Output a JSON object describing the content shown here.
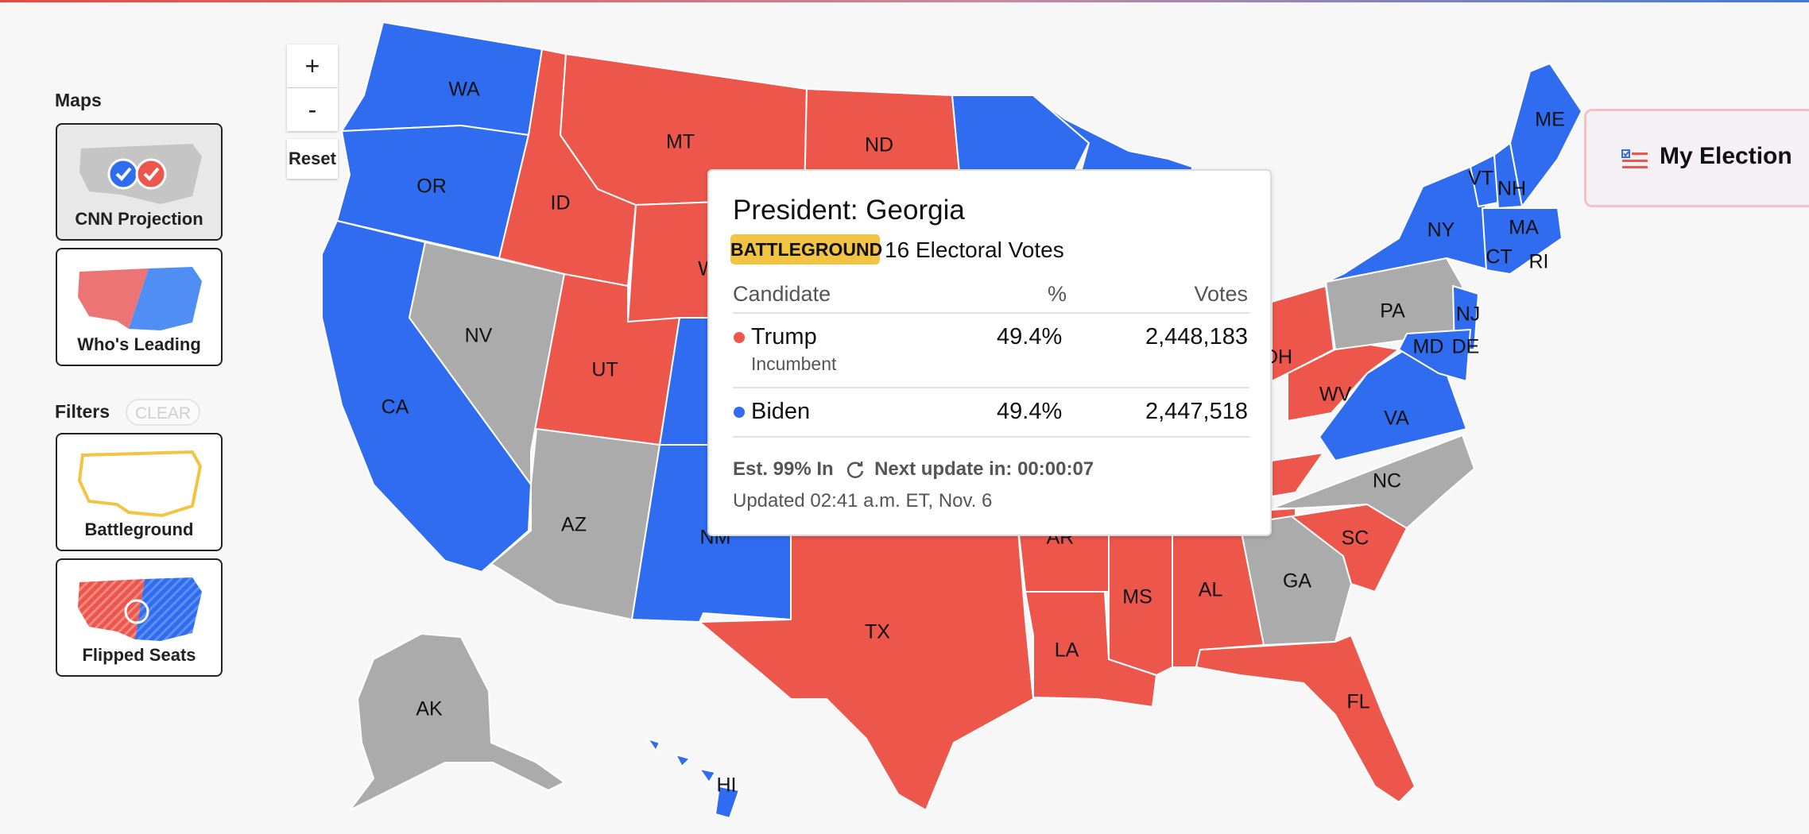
{
  "sidebar": {
    "maps_heading": "Maps",
    "map_options": [
      {
        "label": "CNN Projection",
        "icon": "us-map-check-icon",
        "active": true
      },
      {
        "label": "Who's Leading",
        "icon": "us-map-split-icon",
        "active": false
      }
    ],
    "filters_heading": "Filters",
    "clear_label": "CLEAR",
    "filter_options": [
      {
        "label": "Battleground",
        "icon": "us-outline-icon"
      },
      {
        "label": "Flipped Seats",
        "icon": "us-map-flipped-icon"
      }
    ]
  },
  "zoom": {
    "in_label": "+",
    "out_label": "-",
    "reset_label": "Reset"
  },
  "my_election": {
    "label": "My Election",
    "icon": "ballot-list-icon"
  },
  "colors": {
    "rep": "#ec564b",
    "dem": "#2f6cf0",
    "undecided": "#ababab",
    "battleground": "#f3c444"
  },
  "states": {
    "dem": [
      "WA",
      "OR",
      "CA",
      "NM",
      "NY",
      "VT",
      "NH",
      "ME",
      "MA",
      "CT",
      "RI",
      "NJ",
      "MD",
      "DE",
      "VA",
      "HI"
    ],
    "rep": [
      "MT",
      "ND",
      "ID",
      "UT",
      "OH",
      "WV",
      "TX",
      "LA",
      "MS",
      "AL",
      "SC",
      "FL"
    ],
    "undecided": [
      "NV",
      "AZ",
      "PA",
      "NC",
      "GA",
      "AK"
    ],
    "labels": [
      "WA",
      "OR",
      "CA",
      "NV",
      "ID",
      "MT",
      "ND",
      "UT",
      "AZ",
      "NM",
      "TX",
      "LA",
      "MS",
      "AL",
      "GA",
      "SC",
      "FL",
      "NC",
      "VA",
      "WV",
      "OH",
      "PA",
      "NY",
      "ME",
      "VT",
      "NH",
      "MA",
      "CT",
      "RI",
      "NJ",
      "MD",
      "DE",
      "AK",
      "HI"
    ],
    "partial_labels": [
      "W",
      "DH",
      "AR"
    ]
  },
  "tooltip": {
    "title": "President: Georgia",
    "badge": "BATTLEGROUND",
    "electoral_votes": "16 Electoral Votes",
    "headers": {
      "candidate": "Candidate",
      "pct": "%",
      "votes": "Votes"
    },
    "candidates": [
      {
        "name": "Trump",
        "note": "Incumbent",
        "pct": "49.4%",
        "votes": "2,448,183",
        "color": "#ec564b"
      },
      {
        "name": "Biden",
        "note": "",
        "pct": "49.4%",
        "votes": "2,447,518",
        "color": "#2f6cf0"
      }
    ],
    "est": "Est. 99% In",
    "next_update": "Next update in: 00:00:07",
    "updated": "Updated 02:41 a.m. ET, Nov. 6"
  }
}
